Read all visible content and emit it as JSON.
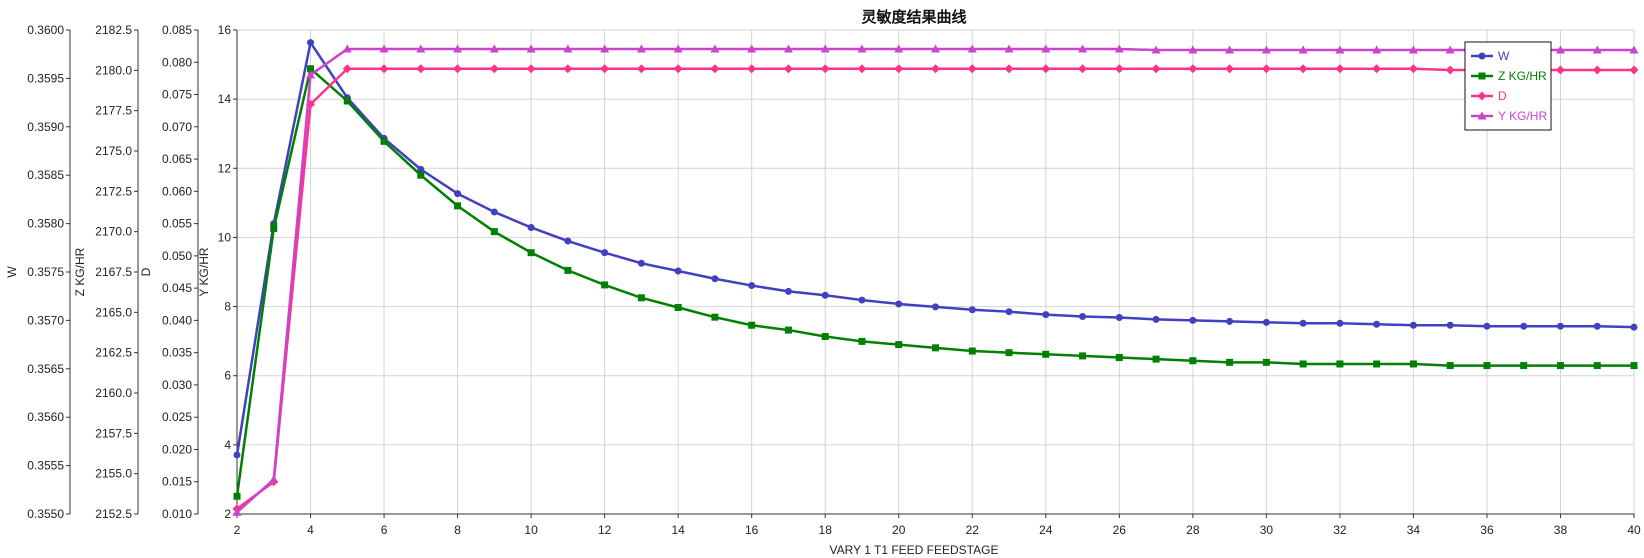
{
  "chart_data": {
    "type": "line",
    "title": "灵敏度结果曲线",
    "xlabel": "VARY   1 T1 FEED FEEDSTAGE",
    "x": [
      2,
      3,
      4,
      5,
      6,
      7,
      8,
      9,
      10,
      11,
      12,
      13,
      14,
      15,
      16,
      17,
      18,
      19,
      20,
      21,
      22,
      23,
      24,
      25,
      26,
      27,
      28,
      29,
      30,
      31,
      32,
      33,
      34,
      35,
      36,
      37,
      38,
      39,
      40
    ],
    "xlim": [
      2,
      40
    ],
    "xticks": [
      2,
      4,
      6,
      8,
      10,
      12,
      14,
      16,
      18,
      20,
      22,
      24,
      26,
      28,
      30,
      32,
      34,
      36,
      38,
      40
    ],
    "grid": true,
    "legend_position": "top-right",
    "axes": [
      {
        "id": "W",
        "label": "W",
        "range": [
          0.355,
          0.36
        ],
        "ticks": [
          "0.3550",
          "0.3555",
          "0.3560",
          "0.3565",
          "0.3570",
          "0.3575",
          "0.3580",
          "0.3585",
          "0.3590",
          "0.3595",
          "0.3600"
        ]
      },
      {
        "id": "Z",
        "label": "Z KG/HR",
        "range": [
          2152.5,
          2182.5
        ],
        "ticks": [
          "2152.5",
          "2155.0",
          "2157.5",
          "2160.0",
          "2162.5",
          "2165.0",
          "2167.5",
          "2170.0",
          "2172.5",
          "2175.0",
          "2177.5",
          "2180.0",
          "2182.5"
        ]
      },
      {
        "id": "D",
        "label": "D",
        "range": [
          0.01,
          0.085
        ],
        "ticks": [
          "0.010",
          "0.015",
          "0.020",
          "0.025",
          "0.030",
          "0.035",
          "0.040",
          "0.045",
          "0.050",
          "0.055",
          "0.060",
          "0.065",
          "0.070",
          "0.075",
          "0.080",
          "0.085"
        ]
      },
      {
        "id": "Y",
        "label": "Y KG/HR",
        "range": [
          2,
          16
        ],
        "ticks": [
          "2",
          "4",
          "6",
          "8",
          "10",
          "12",
          "14",
          "16"
        ]
      }
    ],
    "series": [
      {
        "name": "W",
        "axis": "W",
        "color": "#4040c0",
        "marker": "circle",
        "values": [
          0.35561,
          0.358,
          0.35987,
          0.3593,
          0.35888,
          0.35856,
          0.35831,
          0.35812,
          0.35796,
          0.35782,
          0.3577,
          0.35759,
          0.35751,
          0.35743,
          0.35736,
          0.3573,
          0.35726,
          0.35721,
          0.35717,
          0.35714,
          0.35711,
          0.35709,
          0.35706,
          0.35704,
          0.35703,
          0.35701,
          0.357,
          0.35699,
          0.35698,
          0.35697,
          0.35697,
          0.35696,
          0.35695,
          0.35695,
          0.35694,
          0.35694,
          0.35694,
          0.35694,
          0.35693
        ]
      },
      {
        "name": "Z KG/HR",
        "axis": "Z",
        "color": "#008000",
        "marker": "square",
        "values": [
          2153.6,
          2170.2,
          2180.1,
          2178.1,
          2175.6,
          2173.5,
          2171.6,
          2170.0,
          2168.7,
          2167.6,
          2166.7,
          2165.9,
          2165.3,
          2164.7,
          2164.2,
          2163.9,
          2163.5,
          2163.2,
          2163.0,
          2162.8,
          2162.6,
          2162.5,
          2162.4,
          2162.3,
          2162.2,
          2162.1,
          2162.0,
          2161.9,
          2161.9,
          2161.8,
          2161.8,
          2161.8,
          2161.8,
          2161.7,
          2161.7,
          2161.7,
          2161.7,
          2161.7,
          2161.7
        ]
      },
      {
        "name": "D",
        "axis": "D",
        "color": "#ff3388",
        "marker": "diamond",
        "values": [
          0.0108,
          0.015,
          0.0735,
          0.079,
          0.079,
          0.079,
          0.079,
          0.079,
          0.079,
          0.079,
          0.079,
          0.079,
          0.079,
          0.079,
          0.079,
          0.079,
          0.079,
          0.079,
          0.079,
          0.079,
          0.079,
          0.079,
          0.079,
          0.079,
          0.079,
          0.079,
          0.079,
          0.079,
          0.079,
          0.079,
          0.079,
          0.079,
          0.079,
          0.0788,
          0.0788,
          0.0788,
          0.0788,
          0.0788,
          0.0788
        ]
      },
      {
        "name": "Y KG/HR",
        "axis": "Y",
        "color": "#cc44cc",
        "marker": "triangle",
        "values": [
          2.05,
          3.0,
          14.7,
          15.45,
          15.45,
          15.45,
          15.45,
          15.45,
          15.45,
          15.45,
          15.45,
          15.45,
          15.45,
          15.45,
          15.45,
          15.45,
          15.45,
          15.45,
          15.45,
          15.45,
          15.45,
          15.45,
          15.45,
          15.45,
          15.45,
          15.42,
          15.42,
          15.42,
          15.42,
          15.42,
          15.42,
          15.42,
          15.42,
          15.42,
          15.42,
          15.42,
          15.42,
          15.42,
          15.42
        ]
      }
    ]
  }
}
